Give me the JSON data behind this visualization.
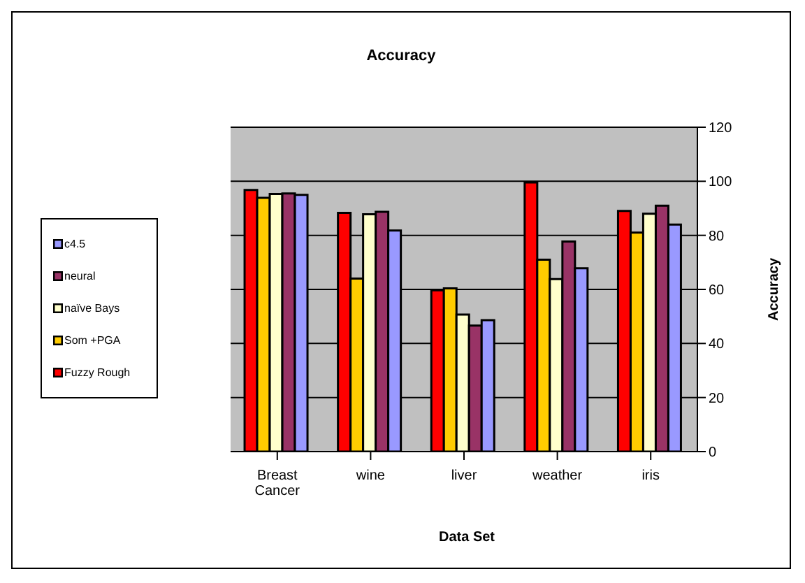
{
  "chart_data": {
    "type": "bar",
    "title": "Accuracy",
    "xlabel": "Data Set",
    "ylabel": "Accuracy",
    "categories": [
      "Breast Cancer",
      "wine",
      "liver",
      "weather",
      "iris"
    ],
    "series": [
      {
        "name": "Fuzzy Rough",
        "color": "#ff0000",
        "values": [
          96.8,
          88.3,
          59.7,
          99.6,
          89
        ]
      },
      {
        "name": "Som +PGA",
        "color": "#ffcc00",
        "values": [
          93.9,
          64,
          60.4,
          71,
          81
        ]
      },
      {
        "name": "naïve Bays",
        "color": "#ffffcc",
        "values": [
          95.3,
          87.8,
          50.7,
          63.8,
          88
        ]
      },
      {
        "name": "neural",
        "color": "#993366",
        "values": [
          95.5,
          88.7,
          46.6,
          77.7,
          91
        ]
      },
      {
        "name": "c4.5",
        "color": "#9999ff",
        "values": [
          95,
          81.8,
          48.6,
          67.8,
          84
        ]
      }
    ],
    "ylim": [
      0,
      120
    ],
    "yticks": [
      0,
      20,
      40,
      60,
      80,
      100,
      120
    ],
    "grid": "y",
    "legend": "left"
  }
}
